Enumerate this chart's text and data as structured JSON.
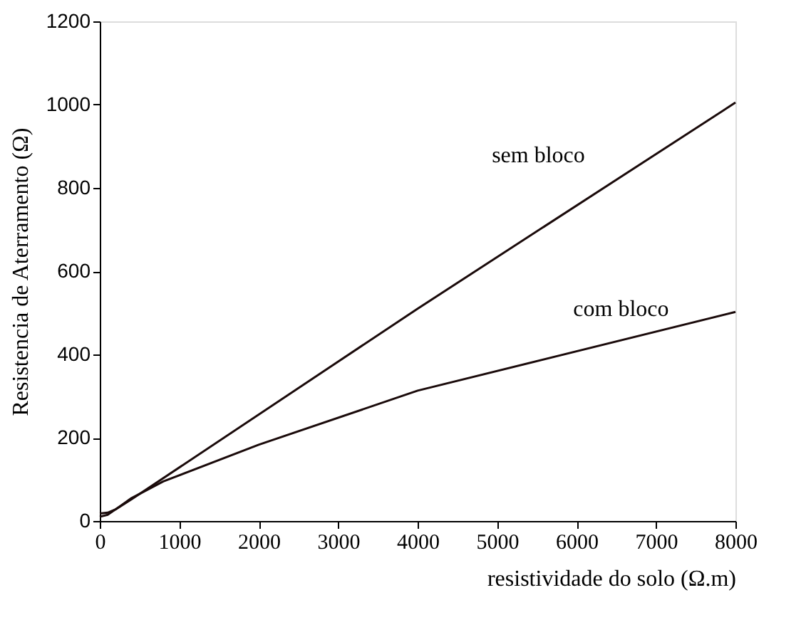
{
  "chart_data": {
    "type": "line",
    "xlabel": "resistividade do solo (Ω.m)",
    "ylabel": "Resistencia de Aterramento (Ω)",
    "xlim": [
      0,
      8000
    ],
    "xticks": [
      0,
      1000,
      2000,
      3000,
      4000,
      5000,
      6000,
      7000,
      8000
    ],
    "ylim": [
      0,
      1200
    ],
    "yticks": [
      0,
      200,
      400,
      600,
      800,
      1000,
      1200
    ],
    "grid": false,
    "marker": "none",
    "line_style": "solid",
    "series": [
      {
        "name": "sem bloco",
        "color": "#1a0a0a",
        "x": [
          0,
          100,
          200,
          400,
          4000,
          8000
        ],
        "values": [
          10,
          15,
          28,
          52,
          510,
          1005
        ]
      },
      {
        "name": "com bloco",
        "color": "#1a0a0a",
        "x": [
          0,
          100,
          200,
          400,
          800,
          2000,
          4000,
          8000
        ],
        "values": [
          18,
          20,
          28,
          55,
          95,
          183,
          313,
          502
        ]
      }
    ]
  }
}
